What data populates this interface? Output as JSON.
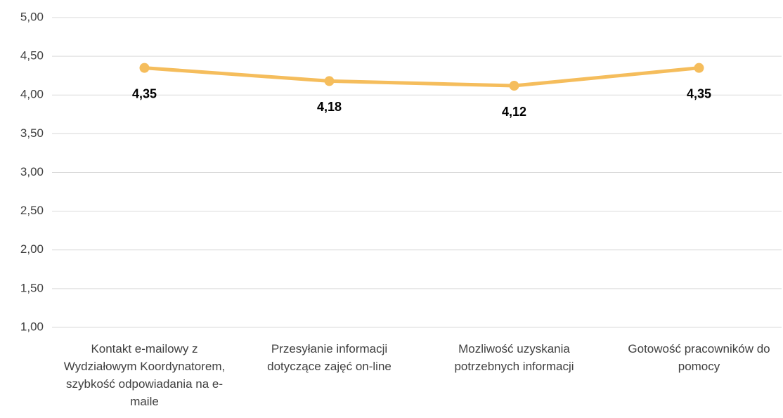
{
  "chart_data": {
    "type": "line",
    "categories": [
      "Kontakt e-mailowy z Wydziałowym Koordynatorem, szybkość odpowiadania na e-maile",
      "Przesyłanie informacji dotyczące zajęć on-line",
      "Mozliwość uzyskania potrzebnych informacji",
      "Gotowość pracowników do pomocy"
    ],
    "values": [
      4.35,
      4.18,
      4.12,
      4.35
    ],
    "value_labels": [
      "4,35",
      "4,18",
      "4,12",
      "4,35"
    ],
    "color": "#f5bd5c",
    "ylim": [
      1,
      5
    ],
    "yticks": [
      {
        "value": 1,
        "label": "1,00"
      },
      {
        "value": 1.5,
        "label": "1,50"
      },
      {
        "value": 2,
        "label": "2,00"
      },
      {
        "value": 2.5,
        "label": "2,50"
      },
      {
        "value": 3,
        "label": "3,00"
      },
      {
        "value": 3.5,
        "label": "3,50"
      },
      {
        "value": 4,
        "label": "4,00"
      },
      {
        "value": 4.5,
        "label": "4,50"
      },
      {
        "value": 5,
        "label": "5,00"
      }
    ],
    "grid": true
  }
}
